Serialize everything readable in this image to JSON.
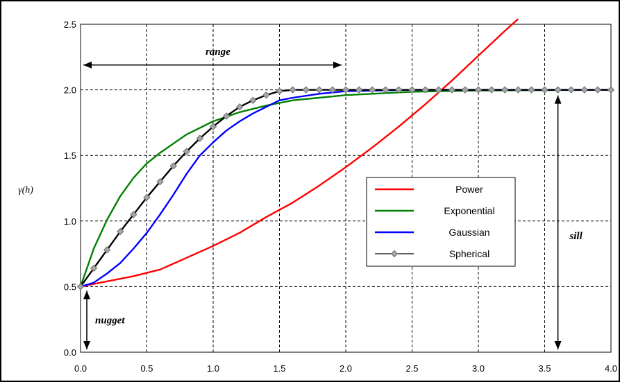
{
  "chart_data": {
    "type": "line",
    "title": "",
    "xlabel": "",
    "ylabel": "γ(h)",
    "xlim": [
      0,
      4
    ],
    "ylim": [
      0,
      2.5
    ],
    "xticks": [
      "0.0",
      "0.5",
      "1.0",
      "1.5",
      "2.0",
      "2.5",
      "3.0",
      "3.5",
      "4.0"
    ],
    "yticks": [
      "0.0",
      "0.5",
      "1.0",
      "1.5",
      "2.0",
      "2.5"
    ],
    "grid": true,
    "legend_position": "center-right",
    "series": [
      {
        "name": "Power",
        "color": "#ff0000",
        "marker": "none",
        "x": [
          0,
          0.2,
          0.4,
          0.6,
          0.8,
          1.0,
          1.2,
          1.4,
          1.6,
          1.8,
          2.0,
          2.2,
          2.4,
          2.6,
          2.8,
          3.0,
          3.2,
          3.3
        ],
        "y": [
          0.5,
          0.54,
          0.58,
          0.63,
          0.72,
          0.81,
          0.91,
          1.03,
          1.14,
          1.27,
          1.41,
          1.56,
          1.72,
          1.89,
          2.07,
          2.26,
          2.45,
          2.54
        ]
      },
      {
        "name": "Exponential",
        "color": "#008000",
        "marker": "none",
        "x": [
          0,
          0.1,
          0.2,
          0.3,
          0.4,
          0.5,
          0.6,
          0.8,
          1.0,
          1.2,
          1.4,
          1.6,
          1.8,
          2.0,
          2.5,
          3.0,
          3.5,
          4.0
        ],
        "y": [
          0.5,
          0.79,
          1.01,
          1.19,
          1.33,
          1.44,
          1.52,
          1.66,
          1.76,
          1.83,
          1.88,
          1.92,
          1.94,
          1.96,
          1.985,
          1.995,
          1.998,
          2.0
        ]
      },
      {
        "name": "Gaussian",
        "color": "#0000ff",
        "marker": "none",
        "x": [
          0,
          0.1,
          0.2,
          0.3,
          0.4,
          0.5,
          0.6,
          0.7,
          0.8,
          0.9,
          1.0,
          1.1,
          1.2,
          1.3,
          1.4,
          1.5,
          1.6,
          1.8,
          2.0,
          2.5,
          3.0,
          4.0
        ],
        "y": [
          0.5,
          0.53,
          0.6,
          0.68,
          0.79,
          0.91,
          1.05,
          1.2,
          1.36,
          1.5,
          1.6,
          1.69,
          1.76,
          1.82,
          1.87,
          1.92,
          1.94,
          1.97,
          1.99,
          2.0,
          2.0,
          2.0
        ]
      },
      {
        "name": "Spherical",
        "color": "#000000",
        "marker": "diamond",
        "x": [
          0,
          0.1,
          0.2,
          0.3,
          0.4,
          0.5,
          0.6,
          0.7,
          0.8,
          0.9,
          1.0,
          1.1,
          1.2,
          1.3,
          1.4,
          1.5,
          1.6,
          1.7,
          1.8,
          1.9,
          2.0,
          2.1,
          2.2,
          2.3,
          2.4,
          2.5,
          2.6,
          2.7,
          2.8,
          2.9,
          3.0,
          3.1,
          3.2,
          3.3,
          3.4,
          3.5,
          3.6,
          3.7,
          3.8,
          3.9,
          4.0
        ],
        "y": [
          0.5,
          0.64,
          0.78,
          0.92,
          1.05,
          1.18,
          1.3,
          1.42,
          1.53,
          1.63,
          1.72,
          1.8,
          1.87,
          1.92,
          1.96,
          1.99,
          2.0,
          2.0,
          2.0,
          2.0,
          2.0,
          2.0,
          2.0,
          2.0,
          2.0,
          2.0,
          2.0,
          2.0,
          2.0,
          2.0,
          2.0,
          2.0,
          2.0,
          2.0,
          2.0,
          2.0,
          2.0,
          2.0,
          2.0,
          2.0,
          2.0
        ]
      }
    ],
    "annotations": {
      "range": {
        "label": "range",
        "x_from": 0.0,
        "x_to": 2.0,
        "y": 2.2
      },
      "sill": {
        "label": "sill",
        "x": 3.6,
        "y_from": 0.0,
        "y_to": 2.0
      },
      "nugget": {
        "label": "nugget",
        "x": 0.05,
        "y_from": 0.0,
        "y_to": 0.5
      }
    }
  }
}
